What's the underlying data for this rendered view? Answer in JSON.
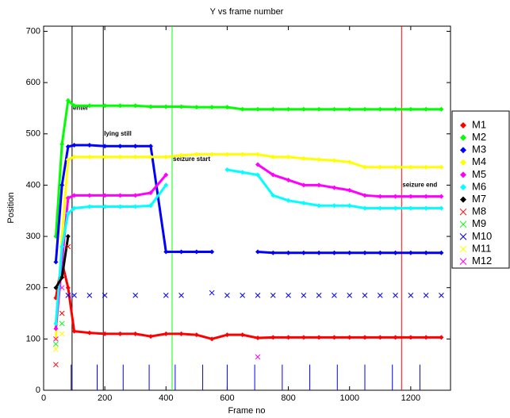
{
  "chart_data": {
    "type": "scatter",
    "title": "Y vs frame number",
    "x_label": "Frame no",
    "y_label": "Position",
    "xlim": [
      0,
      1330
    ],
    "xticks": [
      0,
      200,
      400,
      600,
      800,
      1000,
      1200
    ],
    "ylim": [
      0,
      710
    ],
    "yticks": [
      0,
      100,
      200,
      300,
      400,
      500,
      600,
      700
    ],
    "x": [
      40,
      60,
      80,
      100,
      150,
      200,
      250,
      300,
      350,
      400,
      450,
      500,
      550,
      600,
      650,
      700,
      750,
      800,
      850,
      900,
      950,
      1000,
      1050,
      1100,
      1150,
      1200,
      1250,
      1300
    ],
    "series": [
      {
        "name": "M1",
        "color": "#ff0000",
        "marker": "diamond",
        "values": [
          180,
          250,
          200,
          115,
          112,
          110,
          110,
          110,
          105,
          110,
          110,
          108,
          100,
          108,
          108,
          102,
          103,
          103,
          103,
          103,
          103,
          103,
          103,
          103,
          103,
          103,
          103,
          103
        ]
      },
      {
        "name": "M2",
        "color": "#00ff00",
        "marker": "diamond",
        "values": [
          300,
          480,
          565,
          555,
          555,
          555,
          555,
          555,
          553,
          553,
          553,
          552,
          552,
          552,
          548,
          548,
          548,
          548,
          548,
          548,
          548,
          548,
          548,
          548,
          548,
          548,
          548,
          548
        ]
      },
      {
        "name": "M3",
        "color": "#0000ff",
        "marker": "diamond",
        "values": [
          250,
          400,
          475,
          478,
          478,
          476,
          476,
          476,
          476,
          270,
          270,
          270,
          270,
          null,
          null,
          270,
          268,
          268,
          268,
          268,
          268,
          268,
          268,
          268,
          268,
          268,
          268,
          268
        ]
      },
      {
        "name": "M4",
        "color": "#ffff00",
        "marker": "diamond",
        "values": [
          100,
          300,
          450,
          455,
          455,
          455,
          455,
          455,
          455,
          455,
          458,
          460,
          460,
          460,
          460,
          460,
          455,
          455,
          452,
          450,
          448,
          445,
          435,
          435,
          435,
          435,
          435,
          435
        ]
      },
      {
        "name": "M5",
        "color": "#ff00ff",
        "marker": "diamond",
        "values": [
          120,
          250,
          375,
          380,
          380,
          380,
          380,
          380,
          385,
          420,
          null,
          null,
          null,
          null,
          null,
          440,
          420,
          410,
          400,
          400,
          395,
          390,
          380,
          378,
          378,
          378,
          378,
          378
        ]
      },
      {
        "name": "M6",
        "color": "#00ffff",
        "marker": "diamond",
        "values": [
          130,
          280,
          345,
          355,
          358,
          358,
          358,
          358,
          360,
          400,
          null,
          null,
          null,
          430,
          425,
          420,
          380,
          370,
          365,
          360,
          360,
          360,
          355,
          355,
          355,
          355,
          355,
          355
        ]
      },
      {
        "name": "M7",
        "color": "#000000",
        "marker": "diamond",
        "values": [
          200,
          220,
          300,
          null,
          null,
          null,
          null,
          null,
          null,
          null,
          null,
          null,
          null,
          null,
          null,
          null,
          null,
          null,
          null,
          null,
          null,
          null,
          null,
          null,
          null,
          null,
          null,
          null
        ]
      },
      {
        "name": "M8",
        "color": "#ff0000",
        "marker": "x",
        "values": [
          50,
          150,
          280,
          null,
          null,
          null,
          null,
          null,
          null,
          null,
          null,
          null,
          null,
          null,
          null,
          null,
          null,
          null,
          null,
          null,
          null,
          null,
          null,
          null,
          null,
          null,
          null,
          null
        ]
      },
      {
        "name": "M9",
        "color": "#00ff00",
        "marker": "x",
        "values": [
          90,
          130,
          null,
          null,
          null,
          null,
          null,
          null,
          null,
          null,
          null,
          null,
          null,
          null,
          null,
          null,
          null,
          null,
          null,
          null,
          null,
          null,
          null,
          null,
          null,
          null,
          null,
          null
        ]
      },
      {
        "name": "M10",
        "color": "#0000ff",
        "marker": "x",
        "values": [
          null,
          null,
          185,
          185,
          185,
          185,
          null,
          185,
          null,
          185,
          185,
          null,
          190,
          185,
          185,
          185,
          185,
          185,
          185,
          185,
          185,
          185,
          185,
          185,
          185,
          185,
          185,
          185
        ]
      },
      {
        "name": "M11",
        "color": "#ffff00",
        "marker": "x",
        "values": [
          80,
          110,
          null,
          null,
          null,
          null,
          null,
          null,
          null,
          null,
          null,
          null,
          null,
          null,
          null,
          null,
          null,
          null,
          null,
          null,
          null,
          null,
          null,
          null,
          null,
          null,
          null,
          null
        ]
      },
      {
        "name": "M12",
        "color": "#ff00ff",
        "marker": "x",
        "values": [
          100,
          200,
          null,
          null,
          null,
          null,
          null,
          null,
          null,
          null,
          null,
          null,
          null,
          null,
          null,
          65,
          null,
          null,
          null,
          null,
          null,
          null,
          null,
          null,
          null,
          null,
          null,
          null
        ]
      }
    ],
    "stems": {
      "color": "#0000ff",
      "x": [
        90,
        175,
        260,
        345,
        430,
        520,
        600,
        690,
        780,
        870,
        960,
        1050,
        1140,
        1230
      ],
      "values": [
        50,
        50,
        50,
        50,
        50,
        50,
        50,
        50,
        50,
        50,
        50,
        50,
        50,
        50
      ]
    },
    "events": [
      {
        "x": 93,
        "label": "enter",
        "color": "#000000",
        "label_y": 550
      },
      {
        "x": 195,
        "label": "lying still",
        "color": "#000000",
        "label_y": 500
      },
      {
        "x": 420,
        "label": "seizure start",
        "color": "#00ff00",
        "label_y": 450
      },
      {
        "x": 1170,
        "label": "seizure end",
        "color": "#ff0000",
        "label_y": 400
      }
    ]
  }
}
